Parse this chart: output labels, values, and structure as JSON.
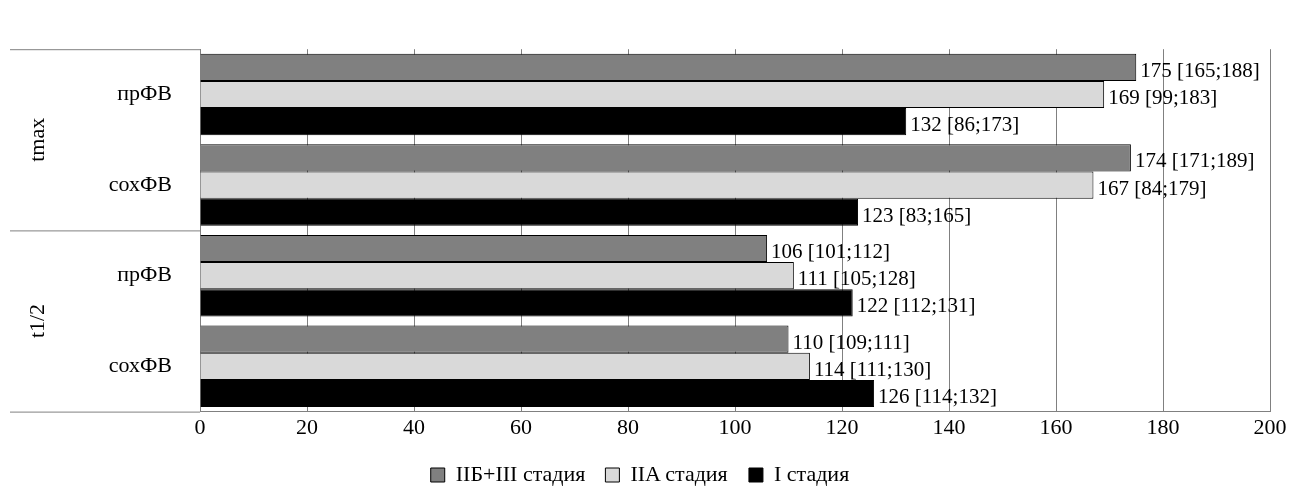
{
  "chart_data": {
    "type": "bar",
    "orientation": "horizontal",
    "categories": [
      "прФВ",
      "сохФВ",
      "прФВ",
      "сохФВ"
    ],
    "annotations": [
      "tmax",
      "t1/2"
    ],
    "series": [
      {
        "name": "IIБ+III стадия",
        "color": "#808080",
        "values": [
          175,
          174,
          106,
          110
        ],
        "value_labels": [
          "175 [165;188]",
          "174 [171;189]",
          "106 [101;112]",
          "110 [109;111]"
        ]
      },
      {
        "name": "IIA стадия",
        "color": "#d9d9d9",
        "values": [
          169,
          167,
          111,
          114
        ],
        "value_labels": [
          "169 [99;183]",
          "167 [84;179]",
          "111 [105;128]",
          "114 [111;130]"
        ]
      },
      {
        "name": "I стадия",
        "color": "#000000",
        "values": [
          132,
          123,
          122,
          126
        ],
        "value_labels": [
          "132 [86;173]",
          "123 [83;165]",
          "122 [112;131]",
          "126 [114;132]"
        ]
      }
    ],
    "xlim": [
      0,
      200
    ],
    "xticks": [
      0,
      20,
      40,
      60,
      80,
      100,
      120,
      140,
      160,
      180,
      200
    ],
    "grid": "x",
    "legend": "bottom"
  }
}
